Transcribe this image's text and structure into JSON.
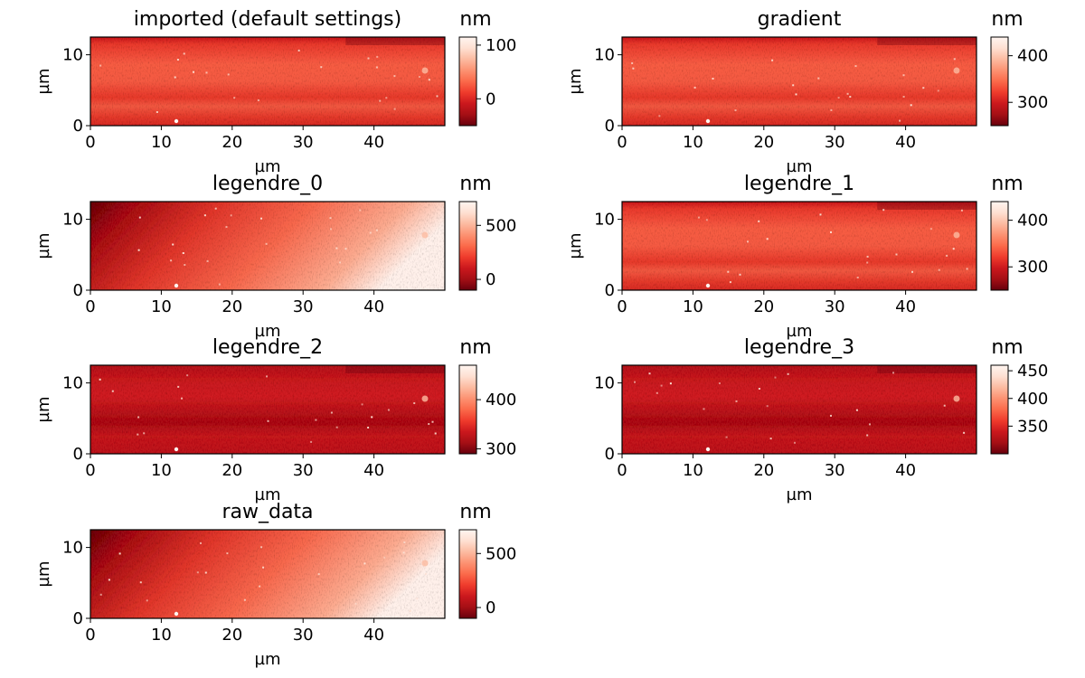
{
  "chart_data": [
    {
      "type": "heatmap",
      "title": "imported (default settings)",
      "xlabel": "µm",
      "ylabel": "µm",
      "xlim": [
        0,
        50
      ],
      "ylim": [
        0,
        12.5
      ],
      "x_ticks": [
        "0",
        "10",
        "20",
        "30",
        "40"
      ],
      "y_ticks": [
        "0",
        "10"
      ],
      "colorbar": {
        "label": "nm",
        "range": [
          -50,
          115
        ],
        "ticks": [
          "0",
          "100"
        ],
        "tick_values": [
          0,
          100
        ]
      },
      "surface": "flattened"
    },
    {
      "type": "heatmap",
      "title": "gradient",
      "xlabel": "µm",
      "ylabel": "µm",
      "xlim": [
        0,
        50
      ],
      "ylim": [
        0,
        12.5
      ],
      "x_ticks": [
        "0",
        "10",
        "20",
        "30",
        "40"
      ],
      "y_ticks": [
        "0",
        "10"
      ],
      "colorbar": {
        "label": "nm",
        "range": [
          250,
          440
        ],
        "ticks": [
          "300",
          "400"
        ],
        "tick_values": [
          300,
          400
        ]
      },
      "surface": "flattened"
    },
    {
      "type": "heatmap",
      "title": "legendre_0",
      "xlabel": "µm",
      "ylabel": "µm",
      "xlim": [
        0,
        50
      ],
      "ylim": [
        0,
        12.5
      ],
      "x_ticks": [
        "0",
        "10",
        "20",
        "30",
        "40"
      ],
      "y_ticks": [
        "0",
        "10"
      ],
      "colorbar": {
        "label": "nm",
        "range": [
          -100,
          720
        ],
        "ticks": [
          "0",
          "500"
        ],
        "tick_values": [
          0,
          500
        ]
      },
      "surface": "tilted"
    },
    {
      "type": "heatmap",
      "title": "legendre_1",
      "xlabel": "µm",
      "ylabel": "µm",
      "xlim": [
        0,
        50
      ],
      "ylim": [
        0,
        12.5
      ],
      "x_ticks": [
        "0",
        "10",
        "20",
        "30",
        "40"
      ],
      "y_ticks": [
        "0",
        "10"
      ],
      "colorbar": {
        "label": "nm",
        "range": [
          250,
          440
        ],
        "ticks": [
          "300",
          "400"
        ],
        "tick_values": [
          300,
          400
        ]
      },
      "surface": "flattened"
    },
    {
      "type": "heatmap",
      "title": "legendre_2",
      "xlabel": "µm",
      "ylabel": "µm",
      "xlim": [
        0,
        50
      ],
      "ylim": [
        0,
        12.5
      ],
      "x_ticks": [
        "0",
        "10",
        "20",
        "30",
        "40"
      ],
      "y_ticks": [
        "0",
        "10"
      ],
      "colorbar": {
        "label": "nm",
        "range": [
          290,
          470
        ],
        "ticks": [
          "300",
          "400"
        ],
        "tick_values": [
          300,
          400
        ]
      },
      "surface": "flattened-dark"
    },
    {
      "type": "heatmap",
      "title": "legendre_3",
      "xlabel": "µm",
      "ylabel": "",
      "xlim": [
        0,
        50
      ],
      "ylim": [
        0,
        12.5
      ],
      "x_ticks": [
        "0",
        "10",
        "20",
        "30",
        "40"
      ],
      "y_ticks": [
        "0",
        "10"
      ],
      "colorbar": {
        "label": "nm",
        "range": [
          300,
          460
        ],
        "ticks": [
          "350",
          "400",
          "450"
        ],
        "tick_values": [
          350,
          400,
          450
        ]
      },
      "surface": "flattened-dark"
    },
    {
      "type": "heatmap",
      "title": "raw_data",
      "xlabel": "µm",
      "ylabel": "µm",
      "xlim": [
        0,
        50
      ],
      "ylim": [
        0,
        12.5
      ],
      "x_ticks": [
        "0",
        "10",
        "20",
        "30",
        "40"
      ],
      "y_ticks": [
        "0",
        "10"
      ],
      "colorbar": {
        "label": "nm",
        "range": [
          -100,
          720
        ],
        "ticks": [
          "0",
          "500"
        ],
        "tick_values": [
          0,
          500
        ]
      },
      "surface": "tilted"
    }
  ],
  "colormap": [
    "#67000d",
    "#a50f15",
    "#cb181d",
    "#ef3b2c",
    "#fb6a4a",
    "#fc9272",
    "#fcbba1",
    "#fee0d2",
    "#fff5f0"
  ]
}
